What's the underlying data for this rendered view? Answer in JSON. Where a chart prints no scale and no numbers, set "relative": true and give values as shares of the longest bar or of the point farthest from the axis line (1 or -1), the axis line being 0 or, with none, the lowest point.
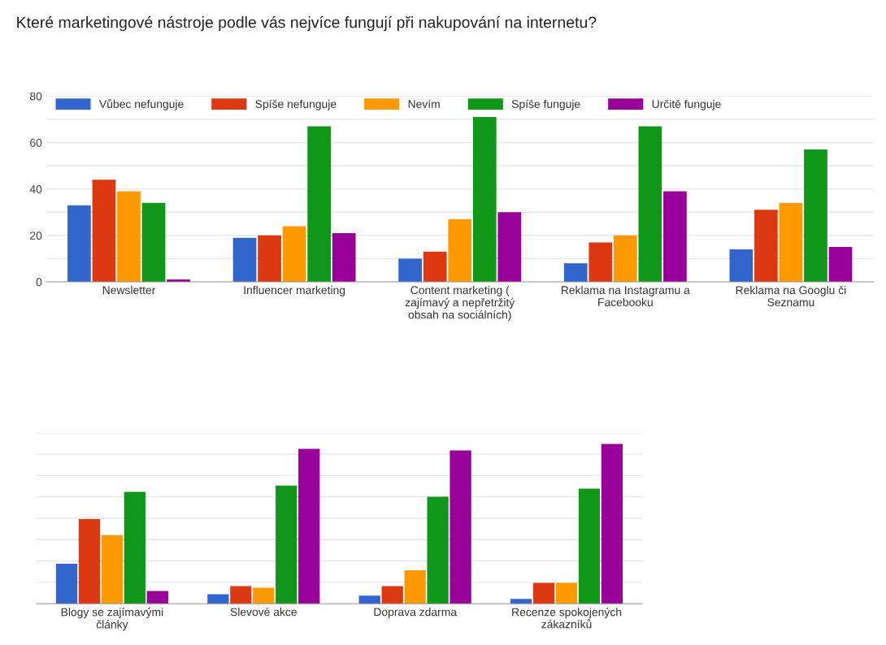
{
  "chart_data": [
    {
      "type": "bar",
      "title": "Které marketingové nástroje podle vás nejvíce fungují při nakupování na internetu?",
      "categories": [
        "Newsletter",
        "Influencer marketing",
        "Content marketing ( zajímavý a nepřetržitý obsah na sociálních)",
        "Reklama na Instagramu a Facebooku",
        "Reklama na Googlu či Seznamu"
      ],
      "series": [
        {
          "name": "Vůbec nefunguje",
          "color": "#3366cc",
          "values": [
            33,
            19,
            10,
            8,
            14
          ]
        },
        {
          "name": "Spíše nefunguje",
          "color": "#dc3912",
          "values": [
            44,
            20,
            13,
            17,
            31
          ]
        },
        {
          "name": "Nevím",
          "color": "#ff9900",
          "values": [
            39,
            24,
            27,
            20,
            34
          ]
        },
        {
          "name": "Spíše funguje",
          "color": "#109618",
          "values": [
            34,
            67,
            71,
            67,
            57
          ]
        },
        {
          "name": "Určitě funguje",
          "color": "#990099",
          "values": [
            1,
            21,
            30,
            39,
            15
          ]
        }
      ],
      "ylim": [
        0,
        80
      ],
      "yticks": [
        0,
        {
          "value": 10,
          "label": null
        },
        20,
        {
          "value": 30,
          "label": null
        },
        40,
        {
          "value": 50,
          "label": null
        },
        60,
        {
          "value": 70,
          "label": null
        },
        80
      ],
      "grid": "y",
      "legend": "top"
    },
    {
      "type": "bar",
      "relative": true,
      "categories": [
        "Blogy se zajímavými články",
        "Slevové akce",
        "Doprava zdarma",
        "Recenze spokojených zákazníků"
      ],
      "series": [
        {
          "color": "#3366cc",
          "values": [
            0.25,
            0.06,
            0.05,
            0.03
          ]
        },
        {
          "color": "#dc3912",
          "values": [
            0.53,
            0.11,
            0.11,
            0.13
          ]
        },
        {
          "color": "#ff9900",
          "values": [
            0.43,
            0.1,
            0.21,
            0.13
          ]
        },
        {
          "color": "#109618",
          "values": [
            0.7,
            0.74,
            0.67,
            0.72
          ]
        },
        {
          "color": "#990099",
          "values": [
            0.08,
            0.97,
            0.96,
            1.0
          ]
        }
      ],
      "grid": "y"
    }
  ]
}
